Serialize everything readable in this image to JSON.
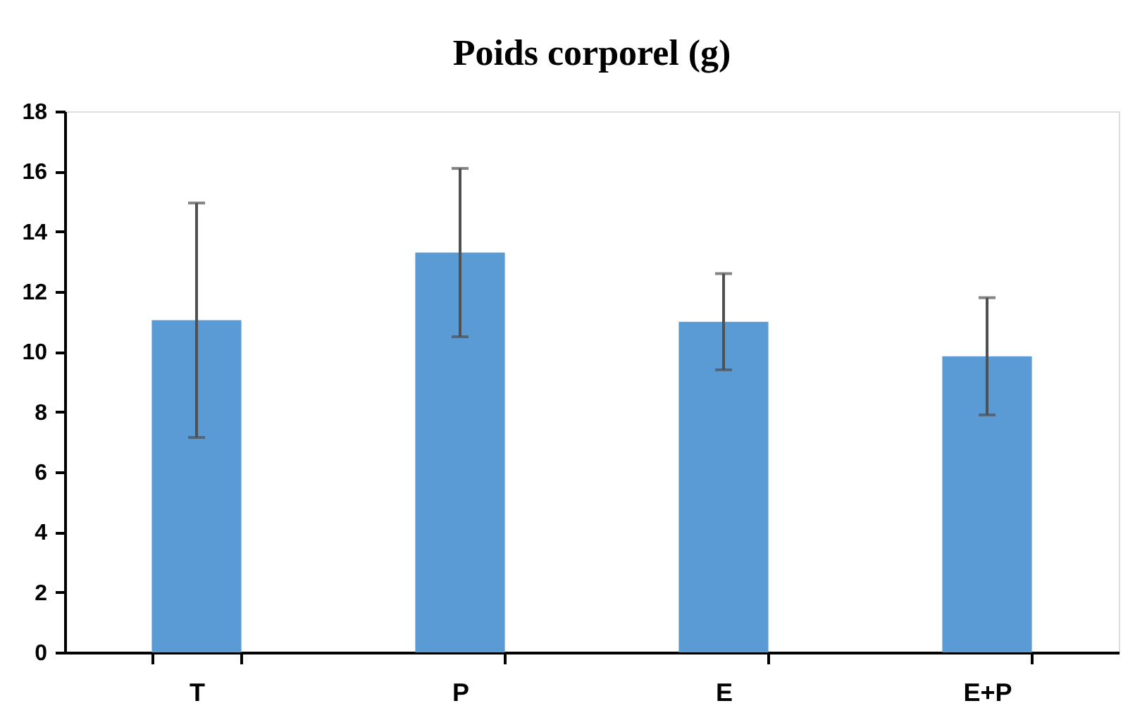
{
  "chart_data": {
    "type": "bar",
    "title": "Poids corporel (g)",
    "categories": [
      "T",
      "P",
      "E",
      "E+P"
    ],
    "values": [
      11.05,
      13.3,
      11.0,
      9.85
    ],
    "errors": [
      3.9,
      2.8,
      1.6,
      1.95
    ],
    "color": "#5b9bd5",
    "ylim": [
      0,
      18
    ],
    "yticks": [
      0,
      2,
      4,
      6,
      8,
      10,
      12,
      14,
      16,
      18
    ],
    "grid": false
  }
}
